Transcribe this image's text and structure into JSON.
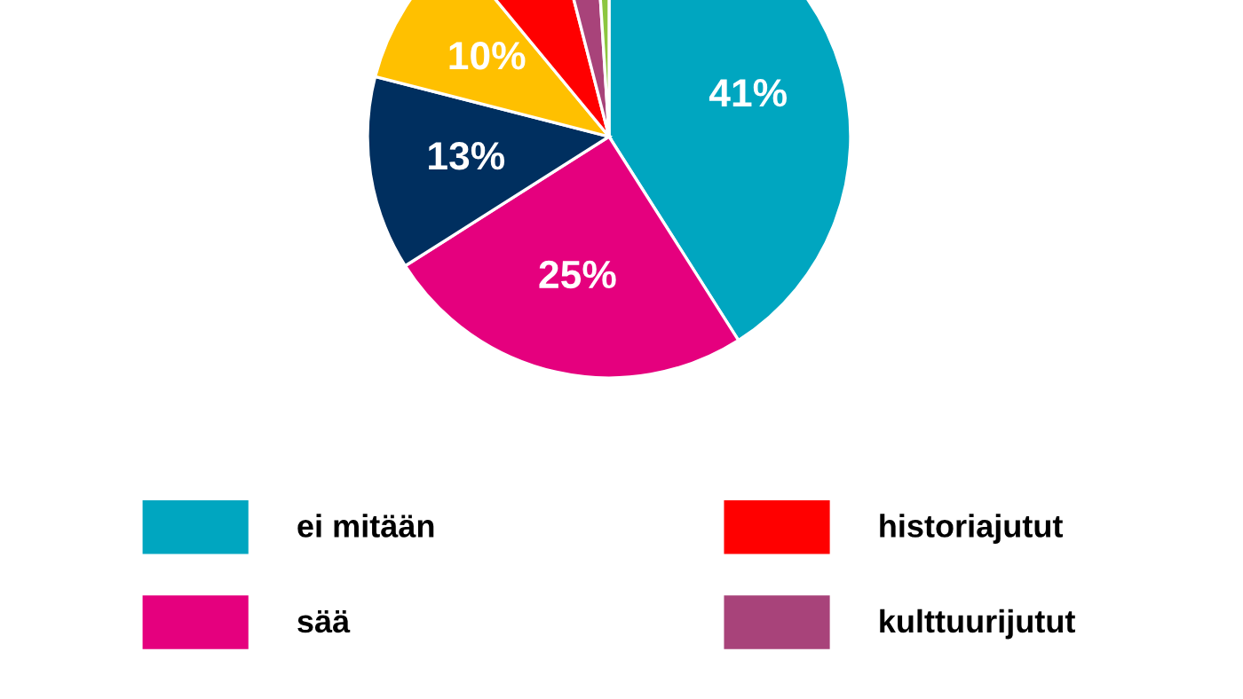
{
  "chart_data": {
    "type": "pie",
    "categories": [
      "ei mitään",
      "sää",
      null,
      null,
      "historiajutut",
      "kulttuurijutut",
      null
    ],
    "values": [
      41,
      25,
      13,
      10,
      7,
      3,
      1
    ],
    "colors": [
      "#00a6c0",
      "#e5007e",
      "#002f5f",
      "#ffc000",
      "#ff0000",
      "#a8437a",
      "#8cc63f"
    ],
    "value_labels": [
      "41%",
      "25%",
      "13%",
      "10%",
      null,
      null,
      null
    ],
    "legend": "bottom"
  }
}
